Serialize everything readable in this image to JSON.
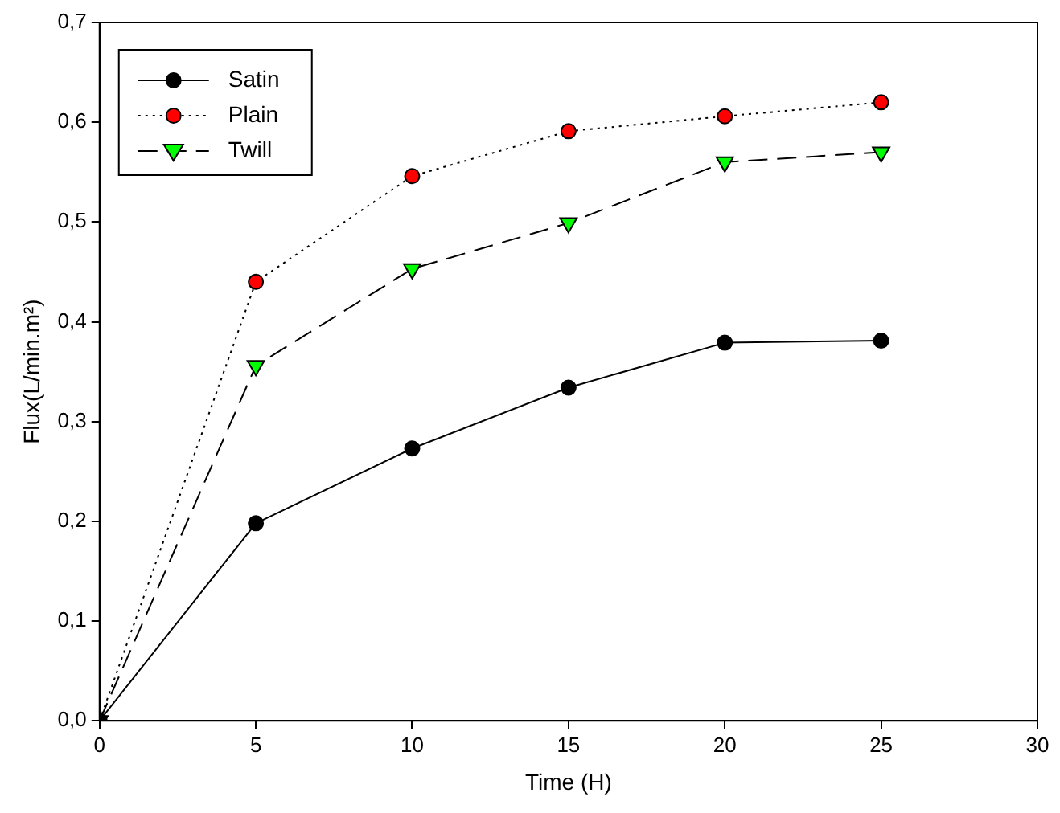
{
  "chart_data": {
    "type": "line",
    "xlabel": "Time (H)",
    "ylabel": "Flux(L/min.m²)",
    "x": [
      0,
      5,
      10,
      15,
      20,
      25
    ],
    "series": [
      {
        "name": "Satin",
        "color": "#000000",
        "marker": "circle",
        "line_style": "solid",
        "values": [
          0,
          0.198,
          0.273,
          0.334,
          0.379,
          0.381
        ]
      },
      {
        "name": "Plain",
        "color": "#ff0000",
        "marker": "circle",
        "line_style": "dotted",
        "values": [
          0,
          0.44,
          0.546,
          0.591,
          0.606,
          0.62
        ]
      },
      {
        "name": "Twill",
        "color": "#00ff00",
        "marker": "triangle",
        "line_style": "dashed",
        "values": [
          0,
          0.356,
          0.453,
          0.499,
          0.56,
          0.57
        ]
      }
    ],
    "xlim": [
      0,
      30
    ],
    "xticks": [
      0,
      5,
      10,
      15,
      20,
      25,
      30
    ],
    "ylim": [
      0,
      0.7
    ],
    "yticks": [
      {
        "value": 0,
        "label": "0,0"
      },
      {
        "value": 0.1,
        "label": "0,1"
      },
      {
        "value": 0.2,
        "label": "0,2"
      },
      {
        "value": 0.3,
        "label": "0,3"
      },
      {
        "value": 0.4,
        "label": "0,4"
      },
      {
        "value": 0.5,
        "label": "0,5"
      },
      {
        "value": 0.6,
        "label": "0,6"
      },
      {
        "value": 0.7,
        "label": "0,7"
      }
    ],
    "grid": false,
    "legend": "top left"
  }
}
